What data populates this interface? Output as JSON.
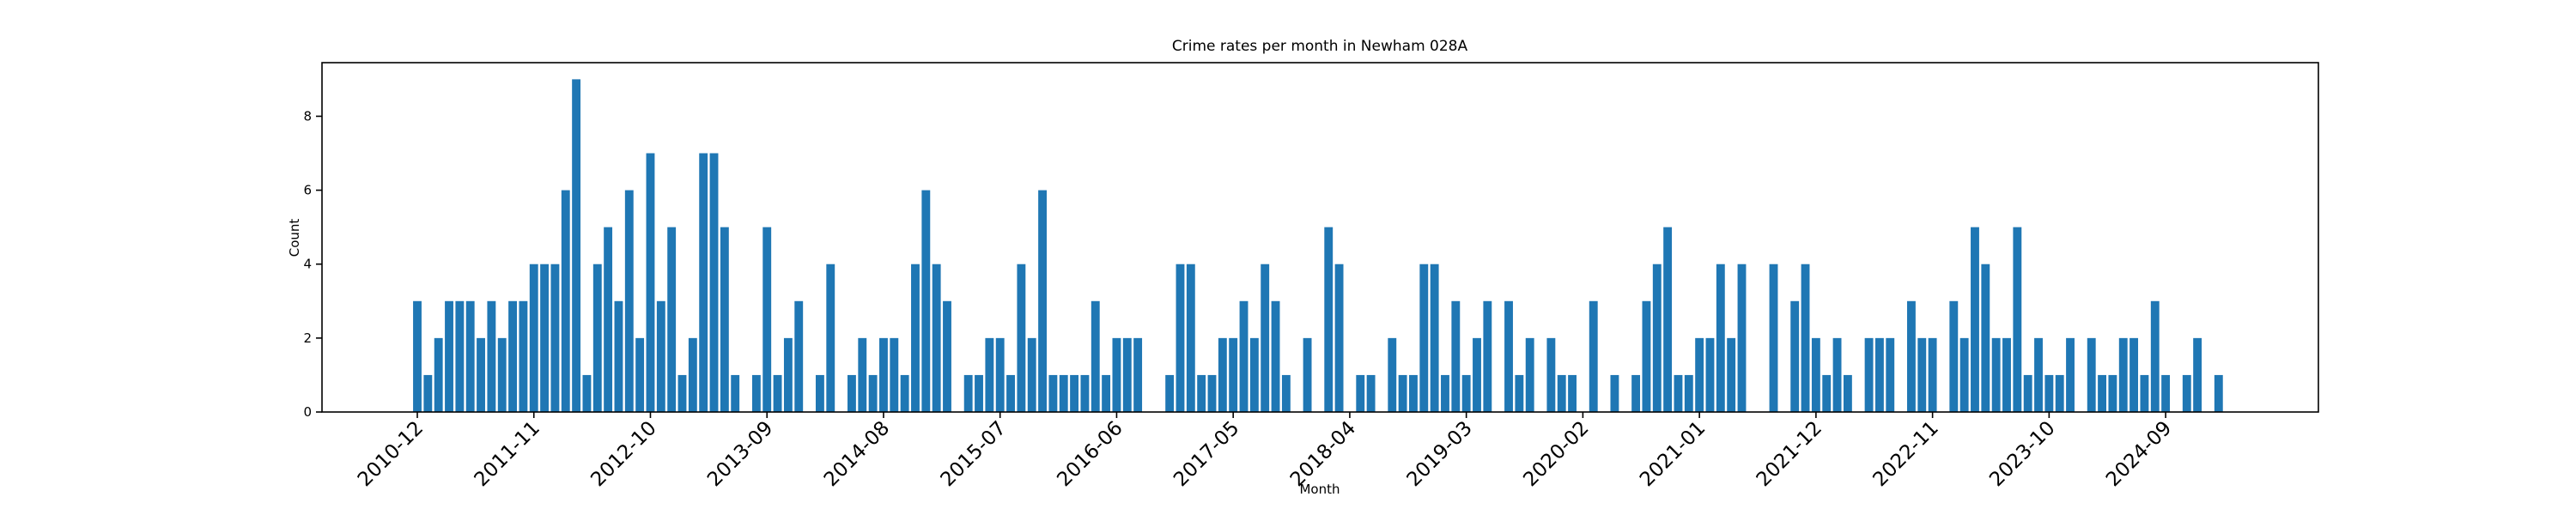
{
  "chart_data": {
    "type": "bar",
    "title": "Crime rates per month in Newham 028A",
    "xlabel": "Month",
    "ylabel": "Count",
    "color": "#1f77b4",
    "categories": [
      "2010-12",
      null,
      null,
      null,
      null,
      null,
      null,
      null,
      null,
      null,
      null,
      "2011-11",
      null,
      null,
      null,
      null,
      null,
      null,
      null,
      null,
      null,
      null,
      "2012-10",
      null,
      null,
      null,
      null,
      null,
      null,
      null,
      null,
      null,
      null,
      "2013-09",
      null,
      null,
      null,
      null,
      null,
      null,
      null,
      null,
      null,
      null,
      "2014-08",
      null,
      null,
      null,
      null,
      null,
      null,
      null,
      null,
      null,
      null,
      "2015-07",
      null,
      null,
      null,
      null,
      null,
      null,
      null,
      null,
      null,
      null,
      "2016-06",
      null,
      null,
      null,
      null,
      null,
      null,
      null,
      null,
      null,
      null,
      "2017-05",
      null,
      null,
      null,
      null,
      null,
      null,
      null,
      null,
      null,
      null,
      "2018-04",
      null,
      null,
      null,
      null,
      null,
      null,
      null,
      null,
      null,
      null,
      "2019-03",
      null,
      null,
      null,
      null,
      null,
      null,
      null,
      null,
      null,
      null,
      "2020-02",
      null,
      null,
      null,
      null,
      null,
      null,
      null,
      null,
      null,
      null,
      "2021-01",
      null,
      null,
      null,
      null,
      null,
      null,
      null,
      null,
      null,
      null,
      "2021-12",
      null,
      null,
      null,
      null,
      null,
      null,
      null,
      null,
      null,
      null,
      "2022-11",
      null,
      null,
      null,
      null,
      null,
      null,
      null,
      null,
      null,
      null,
      "2023-10",
      null,
      null,
      null,
      null,
      null,
      null,
      null,
      null,
      null,
      null,
      "2024-09",
      null,
      null,
      null,
      null,
      null
    ],
    "values": [
      3,
      1,
      2,
      3,
      3,
      3,
      2,
      3,
      2,
      3,
      3,
      4,
      4,
      4,
      6,
      9,
      1,
      4,
      5,
      3,
      6,
      2,
      7,
      3,
      5,
      1,
      2,
      7,
      7,
      5,
      1,
      0,
      1,
      5,
      1,
      2,
      3,
      0,
      1,
      4,
      0,
      1,
      2,
      1,
      2,
      2,
      1,
      4,
      6,
      4,
      3,
      0,
      1,
      1,
      2,
      2,
      1,
      4,
      2,
      6,
      1,
      1,
      1,
      1,
      3,
      1,
      2,
      2,
      2,
      0,
      0,
      1,
      4,
      4,
      1,
      1,
      2,
      2,
      3,
      2,
      4,
      3,
      1,
      0,
      2,
      0,
      5,
      4,
      0,
      1,
      1,
      0,
      2,
      1,
      1,
      4,
      4,
      1,
      3,
      1,
      2,
      3,
      0,
      3,
      1,
      2,
      0,
      2,
      1,
      1,
      0,
      3,
      0,
      1,
      0,
      1,
      3,
      4,
      5,
      1,
      1,
      2,
      2,
      4,
      2,
      4,
      0,
      0,
      4,
      0,
      3,
      4,
      2,
      1,
      2,
      1,
      0,
      2,
      2,
      2,
      0,
      3,
      2,
      2,
      0,
      3,
      2,
      5,
      4,
      2,
      2,
      5,
      1,
      2,
      1,
      1,
      2,
      0,
      2,
      1,
      1,
      2,
      2,
      1,
      3,
      1,
      0,
      1,
      2,
      0,
      1
    ],
    "ylim": [
      0,
      9.45
    ],
    "yticks": [
      0,
      2,
      4,
      6,
      8
    ]
  }
}
